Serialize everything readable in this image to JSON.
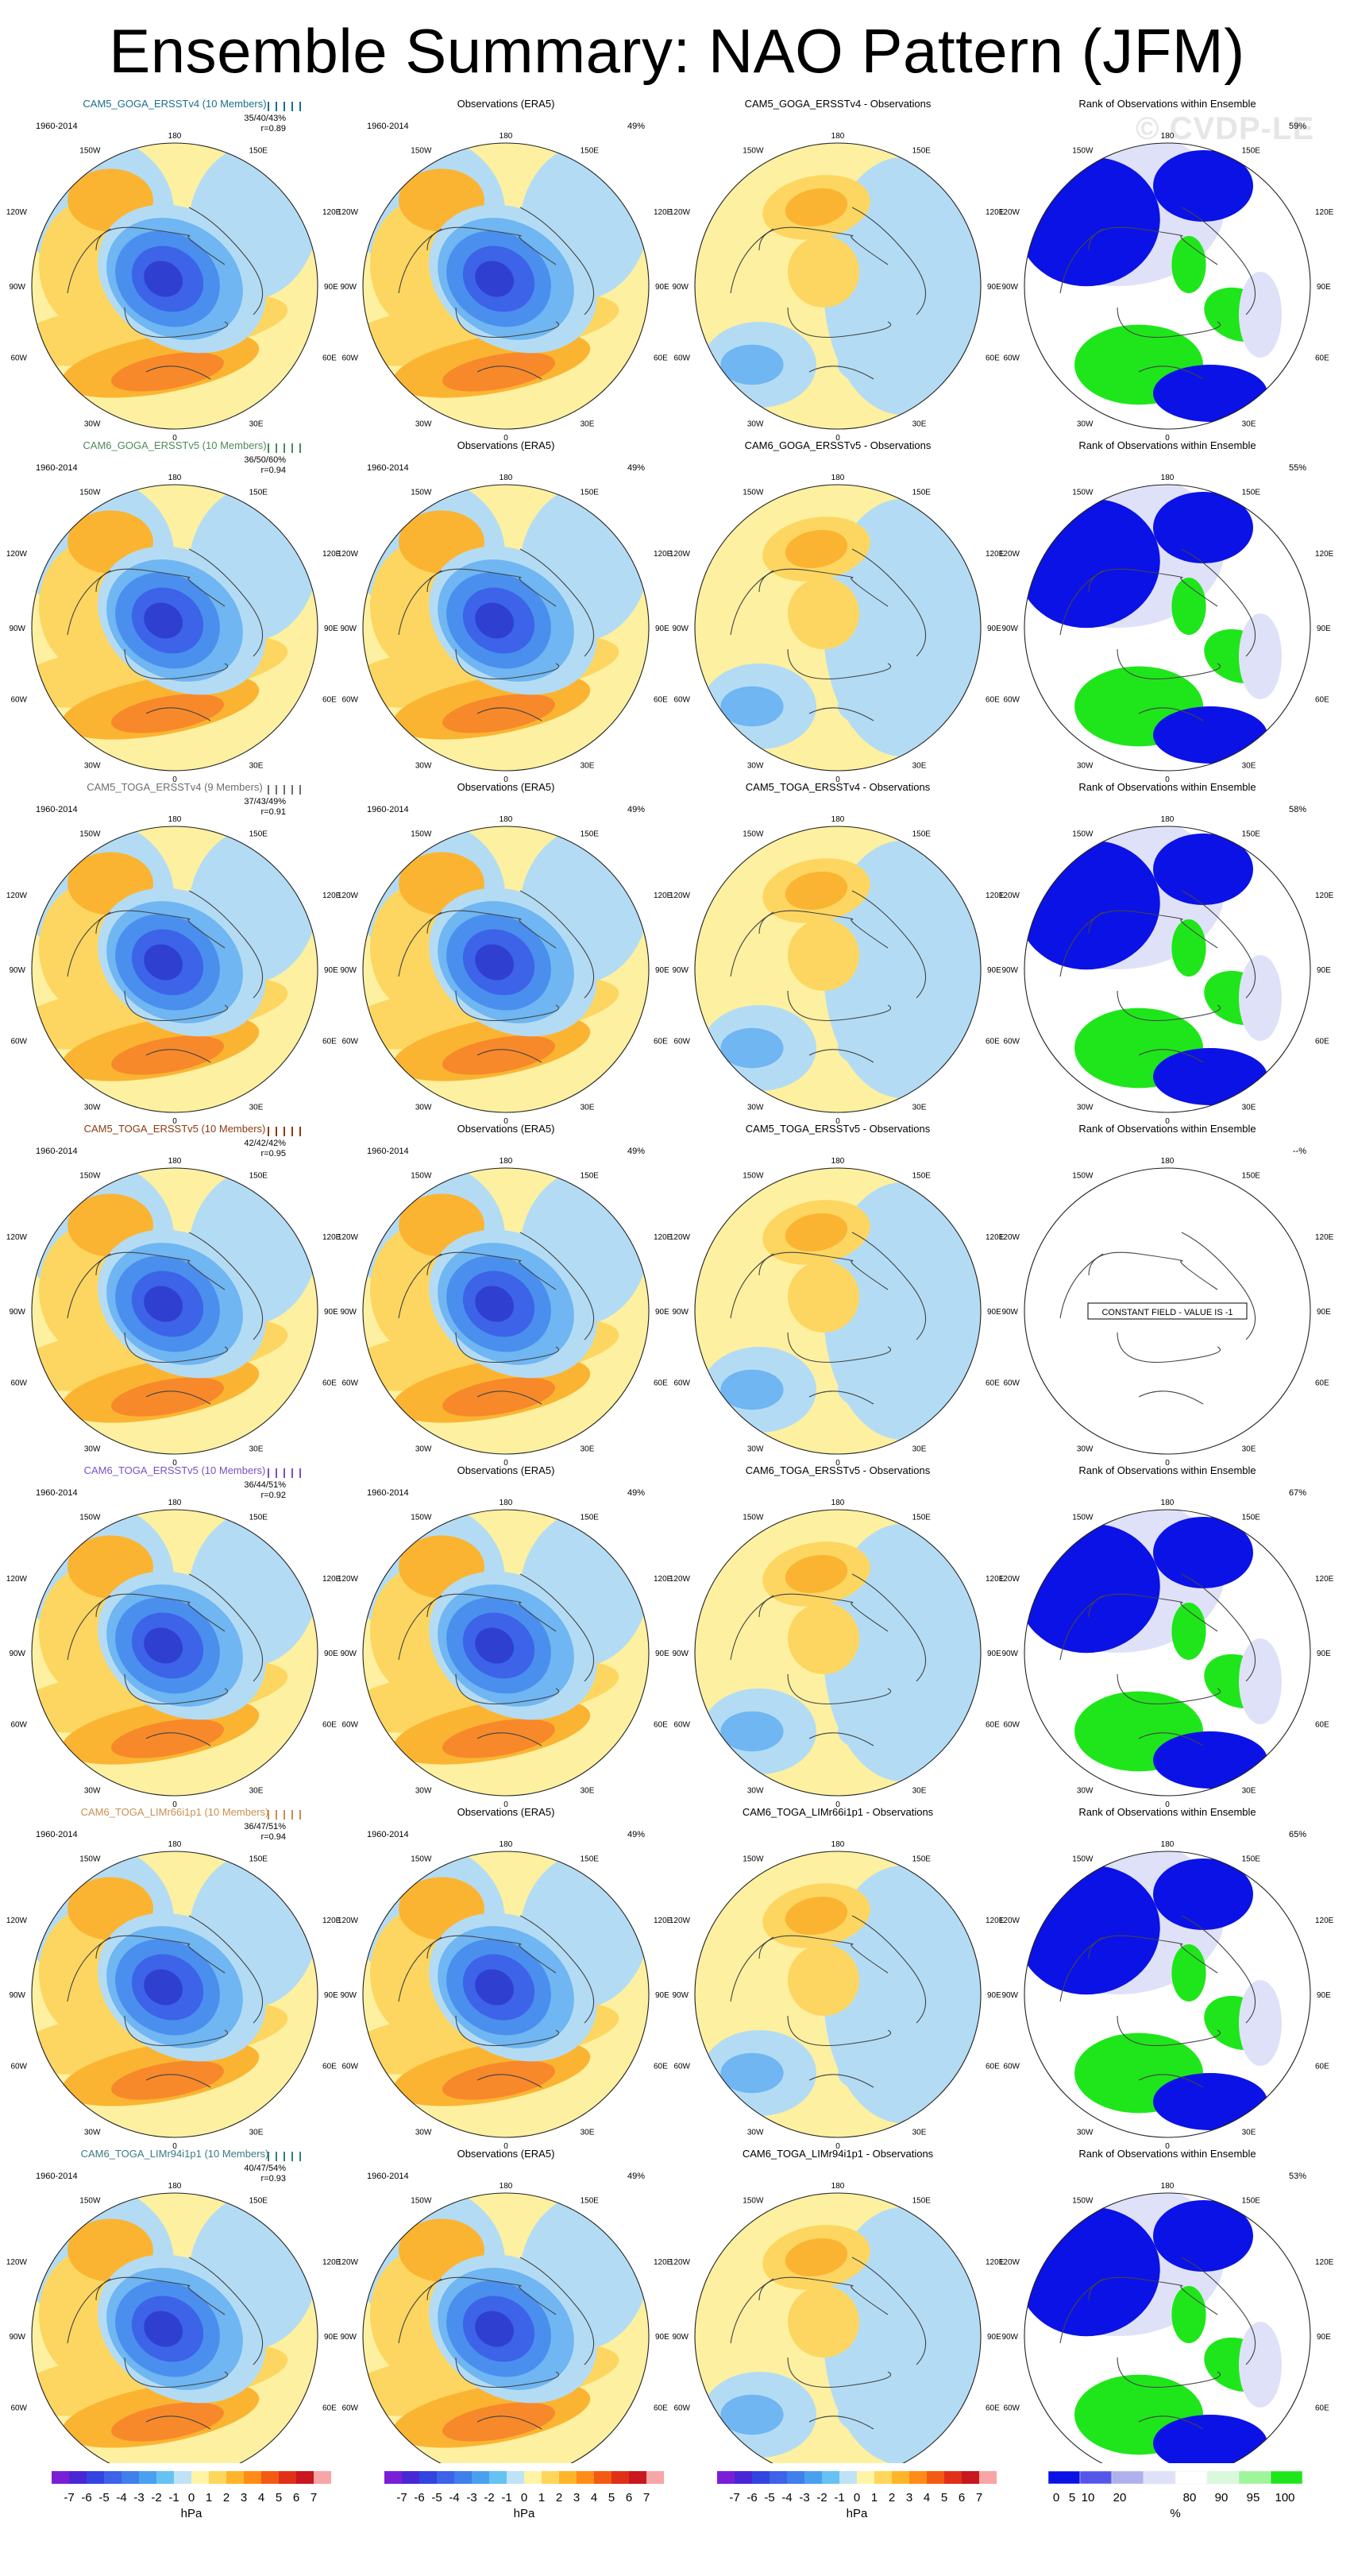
{
  "title": "Ensemble Summary: NAO Pattern (JFM)",
  "watermark": "© CVDP-LE",
  "period": "1960-2014",
  "obs_title": "Observations (ERA5)",
  "obs_pct": "49%",
  "rank_title": "Rank of Observations within Ensemble",
  "constant_field_text": "CONSTANT FIELD - VALUE IS -1",
  "longitude_labels": {
    "top": "180",
    "upper_left": "150W",
    "upper_right": "150E",
    "left_upper": "120W",
    "right_upper": "120E",
    "left": "90W",
    "right": "90E",
    "left_lower": "60W",
    "right_lower": "60E",
    "lower_left": "30W",
    "lower_right": "30E",
    "bottom": "0"
  },
  "rows": [
    {
      "model_title": "CAM5_GOGA_ERSSTv4 (10 Members)",
      "title_color": "#1a6f8c",
      "stats_pct": "35/40/43%",
      "stats_r": "r=0.89",
      "diff_title": "CAM5_GOGA_ERSSTv4 - Observations",
      "rank_pct": "59%"
    },
    {
      "model_title": "CAM6_GOGA_ERSSTv5 (10 Members)",
      "title_color": "#4f8a58",
      "stats_pct": "36/50/60%",
      "stats_r": "r=0.94",
      "diff_title": "CAM6_GOGA_ERSSTv5 - Observations",
      "rank_pct": "55%"
    },
    {
      "model_title": "CAM5_TOGA_ERSSTv4 (9 Members)",
      "title_color": "#6e6e6e",
      "stats_pct": "37/43/49%",
      "stats_r": "r=0.91",
      "diff_title": "CAM5_TOGA_ERSSTv4 - Observations",
      "rank_pct": "58%"
    },
    {
      "model_title": "CAM5_TOGA_ERSSTv5 (10 Members)",
      "title_color": "#8c3a10",
      "stats_pct": "42/42/42%",
      "stats_r": "r=0.95",
      "diff_title": "CAM5_TOGA_ERSSTv5 - Observations",
      "rank_pct": "--%"
    },
    {
      "model_title": "CAM6_TOGA_ERSSTv5 (10 Members)",
      "title_color": "#7a50c0",
      "stats_pct": "36/44/51%",
      "stats_r": "r=0.92",
      "diff_title": "CAM6_TOGA_ERSSTv5 - Observations",
      "rank_pct": "67%"
    },
    {
      "model_title": "CAM6_TOGA_LIMr66i1p1 (10 Members)",
      "title_color": "#c89050",
      "stats_pct": "36/47/51%",
      "stats_r": "r=0.94",
      "diff_title": "CAM6_TOGA_LIMr66i1p1 - Observations",
      "rank_pct": "65%"
    },
    {
      "model_title": "CAM6_TOGA_LIMr94i1p1 (10 Members)",
      "title_color": "#3a7a84",
      "stats_pct": "40/47/54%",
      "stats_r": "r=0.93",
      "diff_title": "CAM6_TOGA_LIMr94i1p1 - Observations",
      "rank_pct": "53%"
    }
  ],
  "colorbar_hpa": {
    "unit": "hPa",
    "labels": [
      "-7",
      "-6",
      "-5",
      "-4",
      "-3",
      "-2",
      "-1",
      "0",
      "1",
      "2",
      "3",
      "4",
      "5",
      "6",
      "7"
    ],
    "colors": [
      "#7a1fd6",
      "#4a27d6",
      "#3245e0",
      "#3c63e8",
      "#3f80ec",
      "#4aa0f0",
      "#66c2f2",
      "#bfe3f6",
      "#fff3a6",
      "#ffd65c",
      "#ffb52a",
      "#ff8c18",
      "#f35a14",
      "#e13018",
      "#c8171e",
      "#f7a5a5"
    ]
  },
  "colorbar_rank": {
    "unit": "%",
    "labels": [
      "0",
      "5",
      "10",
      "20",
      "80",
      "90",
      "95",
      "100"
    ],
    "colors": [
      "#0b12e6",
      "#5457ea",
      "#aeb1ee",
      "#dfe1f8",
      "#ffffff",
      "#dcf8dc",
      "#9ef59a",
      "#1fe61a"
    ]
  },
  "map_colors": {
    "strong_neg": "#2f3fd0",
    "neg3": "#3c63e8",
    "neg2": "#4a8fee",
    "neg1": "#6fb6f2",
    "weak_neg": "#b3dcf4",
    "weak_pos": "#fdf0a0",
    "pos1": "#fcd660",
    "pos2": "#fbb432",
    "pos3": "#f7892a",
    "rank_low": "#0b12e6",
    "rank_mid": "#dfe1f8",
    "rank_high": "#1fe61a"
  }
}
